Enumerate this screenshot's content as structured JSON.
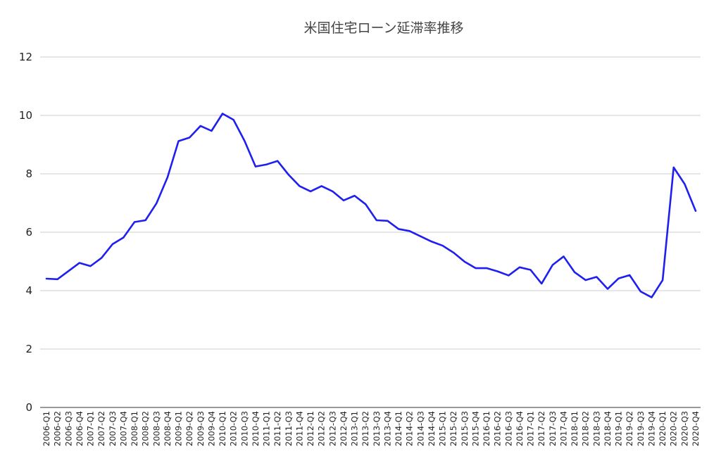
{
  "chart_data": {
    "type": "line",
    "title": "米国住宅ローン延滞率推移",
    "xlabel": "",
    "ylabel": "",
    "ylim": [
      0,
      12
    ],
    "yticks": [
      0,
      2,
      4,
      6,
      8,
      10,
      12
    ],
    "grid": true,
    "legend": "none",
    "line_color": "#1f1ff0",
    "categories": [
      "2006-Q1",
      "2006-Q2",
      "2006-Q3",
      "2006-Q4",
      "2007-Q1",
      "2007-Q2",
      "2007-Q3",
      "2007-Q4",
      "2008-Q1",
      "2008-Q2",
      "2008-Q3",
      "2008-Q4",
      "2009-Q1",
      "2009-Q2",
      "2009-Q3",
      "2009-Q4",
      "2010-Q1",
      "2010-Q2",
      "2010-Q3",
      "2010-Q4",
      "2011-Q1",
      "2011-Q2",
      "2011-Q3",
      "2011-Q4",
      "2012-Q1",
      "2012-Q2",
      "2012-Q3",
      "2012-Q4",
      "2013-Q1",
      "2013-Q2",
      "2013-Q3",
      "2013-Q4",
      "2014-Q1",
      "2014-Q2",
      "2014-Q3",
      "2014-Q4",
      "2015-Q1",
      "2015-Q2",
      "2015-Q3",
      "2015-Q4",
      "2016-Q1",
      "2016-Q2",
      "2016-Q3",
      "2016-Q4",
      "2017-Q1",
      "2017-Q2",
      "2017-Q3",
      "2017-Q4",
      "2018-Q1",
      "2018-Q2",
      "2018-Q3",
      "2018-Q4",
      "2019-Q1",
      "2019-Q2",
      "2019-Q3",
      "2019-Q4",
      "2020-Q1",
      "2020-Q2",
      "2020-Q3",
      "2020-Q4"
    ],
    "series": [
      {
        "values": [
          4.41,
          4.39,
          4.67,
          4.95,
          4.84,
          5.12,
          5.59,
          5.82,
          6.35,
          6.41,
          6.99,
          7.88,
          9.12,
          9.24,
          9.64,
          9.47,
          10.06,
          9.85,
          9.13,
          8.25,
          8.32,
          8.44,
          7.97,
          7.58,
          7.4,
          7.58,
          7.4,
          7.09,
          7.25,
          6.96,
          6.41,
          6.39,
          6.11,
          6.04,
          5.86,
          5.68,
          5.54,
          5.3,
          4.99,
          4.77,
          4.77,
          4.66,
          4.52,
          4.8,
          4.71,
          4.24,
          4.88,
          5.17,
          4.63,
          4.36,
          4.47,
          4.06,
          4.42,
          4.53,
          3.97,
          3.77,
          4.36,
          8.22,
          7.65,
          6.73
        ]
      }
    ]
  }
}
